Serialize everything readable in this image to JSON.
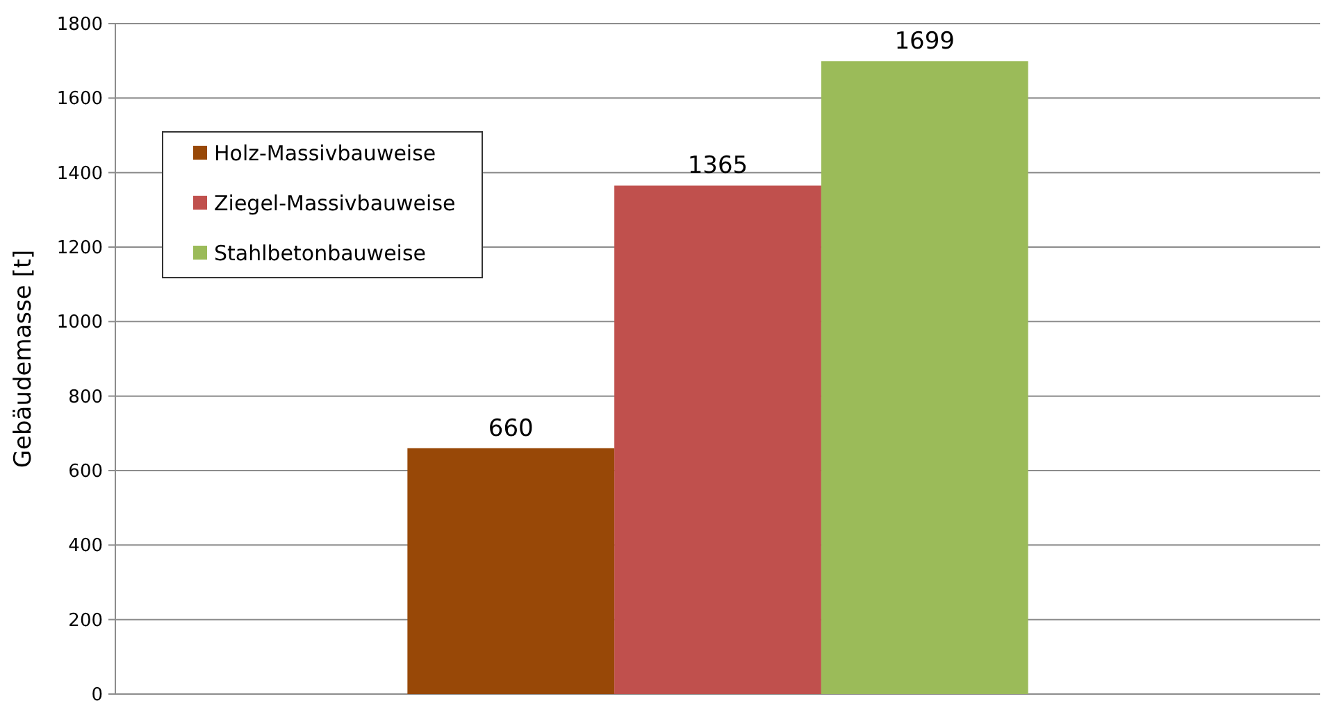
{
  "chart_data": {
    "type": "bar",
    "ylabel": "Gebäudemasse [t]",
    "categories": [
      null
    ],
    "series": [
      {
        "name": "Holz-Massivbauweise",
        "color": "#984807",
        "values": [
          660
        ]
      },
      {
        "name": "Ziegel-Massivbauweise",
        "color": "#c0504d",
        "values": [
          1365
        ]
      },
      {
        "name": "Stahlbetonbauweise",
        "color": "#9bbb59",
        "values": [
          1699
        ]
      }
    ],
    "ylim": [
      0,
      1800
    ],
    "yticks": [
      0,
      200,
      400,
      600,
      800,
      1000,
      1200,
      1400,
      1600,
      1800
    ],
    "grid": "y",
    "legend": "top left",
    "data_labels": true
  }
}
